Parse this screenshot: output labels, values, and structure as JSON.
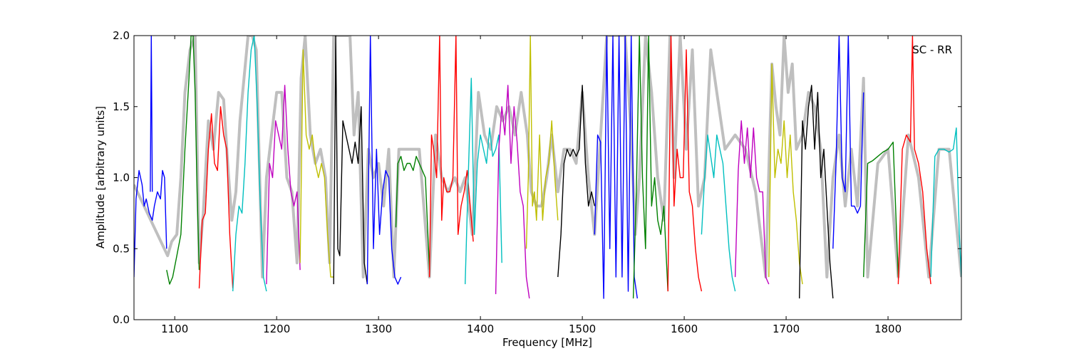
{
  "chart_data": {
    "type": "line",
    "title": "",
    "annotation": "SC - RR",
    "xlabel": "Frequency [MHz]",
    "ylabel": "Amplitude [arbitrary units]",
    "xlim": [
      1060,
      1872
    ],
    "ylim": [
      0.0,
      2.0
    ],
    "x_ticks": [
      1100,
      1200,
      1300,
      1400,
      1500,
      1600,
      1700,
      1800
    ],
    "x_tick_labels": [
      "1100",
      "1200",
      "1300",
      "1400",
      "1500",
      "1600",
      "1700",
      "1800"
    ],
    "y_ticks": [
      0.0,
      0.5,
      1.0,
      1.5,
      2.0
    ],
    "y_tick_labels": [
      "0.0",
      "0.5",
      "1.0",
      "1.5",
      "2.0"
    ],
    "grid": false,
    "background_series": {
      "color": "#bfbfbf",
      "x": [
        1060,
        1093,
        1097,
        1102,
        1106,
        1110,
        1115,
        1120,
        1124,
        1128,
        1133,
        1138,
        1143,
        1148,
        1152,
        1156,
        1160,
        1164,
        1168,
        1172,
        1176,
        1180,
        1186,
        1190,
        1195,
        1200,
        1205,
        1210,
        1215,
        1220,
        1224,
        1228,
        1233,
        1238,
        1243,
        1248,
        1252,
        1256,
        1260,
        1264,
        1268,
        1272,
        1276,
        1280,
        1285,
        1290,
        1295,
        1300,
        1305,
        1310,
        1315,
        1320,
        1330,
        1340,
        1350,
        1356,
        1362,
        1368,
        1375,
        1380,
        1385,
        1392,
        1398,
        1404,
        1410,
        1416,
        1422,
        1428,
        1434,
        1440,
        1446,
        1450,
        1455,
        1460,
        1465,
        1470,
        1476,
        1482,
        1488,
        1494,
        1500,
        1506,
        1512,
        1518,
        1524,
        1530,
        1536,
        1542,
        1548,
        1552,
        1556,
        1562,
        1568,
        1574,
        1580,
        1586,
        1590,
        1596,
        1602,
        1608,
        1614,
        1620,
        1626,
        1632,
        1640,
        1650,
        1660,
        1670,
        1680,
        1686,
        1690,
        1694,
        1698,
        1702,
        1706,
        1710,
        1716,
        1722,
        1728,
        1734,
        1740,
        1746,
        1752,
        1758,
        1764,
        1770,
        1776,
        1780,
        1790,
        1800,
        1810,
        1820,
        1830,
        1840,
        1850,
        1860,
        1872
      ],
      "y": [
        0.95,
        0.45,
        0.55,
        0.6,
        1.0,
        1.6,
        1.9,
        2.0,
        0.4,
        0.75,
        1.4,
        1.2,
        1.6,
        1.55,
        1.1,
        0.7,
        0.9,
        1.4,
        1.7,
        2.0,
        2.0,
        1.9,
        0.3,
        1.0,
        1.3,
        1.6,
        1.6,
        1.0,
        0.9,
        0.4,
        1.7,
        2.0,
        1.3,
        1.1,
        1.2,
        1.0,
        0.4,
        2.0,
        2.0,
        2.0,
        2.0,
        2.0,
        1.3,
        1.6,
        0.3,
        1.2,
        1.0,
        1.1,
        0.8,
        1.2,
        0.3,
        1.2,
        1.2,
        1.2,
        0.3,
        1.3,
        1.0,
        0.9,
        1.0,
        0.9,
        1.0,
        0.6,
        1.6,
        1.3,
        1.2,
        1.5,
        1.4,
        1.5,
        1.3,
        1.6,
        1.3,
        0.9,
        0.8,
        0.8,
        1.0,
        1.3,
        0.9,
        1.2,
        1.2,
        1.1,
        1.6,
        1.0,
        0.6,
        1.3,
        2.0,
        2.0,
        2.0,
        2.0,
        1.3,
        0.6,
        1.0,
        2.0,
        1.6,
        1.0,
        0.7,
        2.0,
        1.0,
        2.0,
        1.2,
        1.9,
        0.8,
        1.0,
        1.9,
        1.6,
        1.2,
        1.3,
        1.2,
        0.9,
        0.3,
        1.8,
        1.5,
        1.3,
        2.0,
        1.6,
        1.8,
        1.2,
        1.3,
        1.6,
        1.5,
        1.2,
        0.3,
        1.0,
        1.3,
        0.8,
        1.2,
        0.8,
        1.7,
        0.3,
        1.1,
        1.2,
        0.3,
        1.3,
        1.0,
        0.3,
        1.2,
        1.2,
        0.3
      ]
    },
    "series": [
      {
        "color": "#0000ff",
        "x": [
          1060,
          1062,
          1065,
          1068,
          1070,
          1072,
          1075,
          1078,
          1080,
          1083,
          1086,
          1088,
          1090,
          1092
        ],
        "y": [
          0.3,
          0.85,
          1.05,
          0.95,
          0.8,
          0.85,
          0.75,
          0.7,
          0.8,
          0.9,
          0.85,
          1.05,
          1.0,
          0.5
        ]
      },
      {
        "color": "#0000ff",
        "x": [
          1076,
          1077,
          1078
        ],
        "y": [
          0.9,
          2.0,
          0.9
        ]
      },
      {
        "color": "#008000",
        "x": [
          1092,
          1095,
          1098,
          1102,
          1106,
          1110,
          1114,
          1116,
          1118,
          1120,
          1122,
          1124
        ],
        "y": [
          0.35,
          0.25,
          0.3,
          0.45,
          0.6,
          1.2,
          1.7,
          2.0,
          2.0,
          1.6,
          0.9,
          0.35
        ]
      },
      {
        "color": "#ff0000",
        "x": [
          1124,
          1127,
          1130,
          1133,
          1136,
          1139,
          1142,
          1145,
          1148,
          1151,
          1154,
          1157
        ],
        "y": [
          0.22,
          0.7,
          0.75,
          1.2,
          1.45,
          1.1,
          1.05,
          1.5,
          1.3,
          1.2,
          0.6,
          0.22
        ]
      },
      {
        "color": "#00bfbf",
        "x": [
          1157,
          1160,
          1163,
          1166,
          1169,
          1172,
          1175,
          1178,
          1181,
          1184,
          1187,
          1190
        ],
        "y": [
          0.2,
          0.6,
          0.8,
          0.75,
          1.1,
          1.6,
          1.9,
          2.0,
          1.5,
          0.8,
          0.3,
          0.2
        ]
      },
      {
        "color": "#bf00bf",
        "x": [
          1190,
          1193,
          1196,
          1199,
          1202,
          1205,
          1208,
          1211,
          1214,
          1217,
          1220,
          1223
        ],
        "y": [
          0.25,
          1.1,
          1.0,
          1.4,
          1.3,
          1.2,
          1.65,
          1.2,
          0.9,
          0.8,
          0.9,
          0.35
        ]
      },
      {
        "color": "#bfbf00",
        "x": [
          1223,
          1226,
          1229,
          1232,
          1235,
          1238,
          1241,
          1244,
          1247,
          1250,
          1253,
          1256
        ],
        "y": [
          0.4,
          1.9,
          1.3,
          1.2,
          1.3,
          1.1,
          1.0,
          1.1,
          1.0,
          0.6,
          0.3,
          0.3
        ]
      },
      {
        "color": "#000000",
        "x": [
          1256,
          1258,
          1260,
          1262,
          1265,
          1268,
          1271,
          1274,
          1277,
          1280,
          1283,
          1286,
          1289
        ],
        "y": [
          0.25,
          2.0,
          0.5,
          0.45,
          1.4,
          1.3,
          1.2,
          1.1,
          1.25,
          1.1,
          1.5,
          0.4,
          0.25
        ]
      },
      {
        "color": "#0000ff",
        "x": [
          1289,
          1292,
          1295,
          1298,
          1301,
          1304,
          1307,
          1310,
          1313,
          1316,
          1319,
          1322
        ],
        "y": [
          0.25,
          2.0,
          0.5,
          1.2,
          0.6,
          0.9,
          1.05,
          1.0,
          0.5,
          0.3,
          0.25,
          0.3
        ]
      },
      {
        "color": "#008000",
        "x": [
          1317,
          1319,
          1322,
          1325,
          1328,
          1331,
          1334,
          1337,
          1340,
          1343,
          1346,
          1350
        ],
        "y": [
          0.65,
          1.1,
          1.15,
          1.05,
          1.1,
          1.1,
          1.05,
          1.15,
          1.1,
          1.05,
          1.0,
          0.35
        ]
      },
      {
        "color": "#ff0000",
        "x": [
          1350,
          1352,
          1354,
          1357,
          1360,
          1362,
          1364,
          1367,
          1370,
          1373,
          1376,
          1378,
          1381,
          1384,
          1387,
          1390,
          1393
        ],
        "y": [
          0.3,
          1.3,
          1.2,
          1.0,
          2.0,
          0.7,
          1.0,
          0.9,
          0.9,
          1.0,
          2.0,
          0.6,
          0.8,
          0.9,
          1.05,
          0.8,
          0.55
        ]
      },
      {
        "color": "#00bfbf",
        "x": [
          1385,
          1388,
          1391,
          1394,
          1397,
          1400,
          1403,
          1406,
          1409,
          1412,
          1415,
          1418,
          1421
        ],
        "y": [
          0.25,
          1.0,
          1.7,
          0.6,
          1.1,
          1.3,
          1.2,
          1.1,
          1.35,
          1.15,
          1.2,
          1.3,
          0.4
        ]
      },
      {
        "color": "#bf00bf",
        "x": [
          1415,
          1418,
          1421,
          1424,
          1427,
          1430,
          1433,
          1436,
          1439,
          1442,
          1445,
          1448
        ],
        "y": [
          0.18,
          1.2,
          1.5,
          1.3,
          1.65,
          1.1,
          1.5,
          1.25,
          0.9,
          0.8,
          0.3,
          0.15
        ]
      },
      {
        "color": "#bfbf00",
        "x": [
          1445,
          1447,
          1449,
          1451,
          1453,
          1455,
          1458,
          1461,
          1464,
          1467,
          1470,
          1473,
          1476
        ],
        "y": [
          0.5,
          1.0,
          2.0,
          0.8,
          0.9,
          0.7,
          1.3,
          0.7,
          1.0,
          1.1,
          1.4,
          1.0,
          0.7
        ]
      },
      {
        "color": "#000000",
        "x": [
          1476,
          1479,
          1482,
          1485,
          1488,
          1491,
          1494,
          1497,
          1500,
          1503,
          1506,
          1509,
          1512
        ],
        "y": [
          0.3,
          0.6,
          1.1,
          1.2,
          1.15,
          1.2,
          1.15,
          1.2,
          1.65,
          1.1,
          0.8,
          0.9,
          0.8
        ]
      },
      {
        "color": "#0000ff",
        "x": [
          1512,
          1515,
          1518,
          1521,
          1524,
          1527,
          1530,
          1533,
          1536,
          1539,
          1542,
          1545,
          1548,
          1551,
          1554
        ],
        "y": [
          0.6,
          1.3,
          1.25,
          0.15,
          2.0,
          0.5,
          2.0,
          0.3,
          2.0,
          0.3,
          2.0,
          0.2,
          2.0,
          0.3,
          0.15
        ]
      },
      {
        "color": "#008000",
        "x": [
          1550,
          1553,
          1556,
          1559,
          1562,
          1565,
          1568,
          1571,
          1574,
          1577,
          1580,
          1584
        ],
        "y": [
          0.15,
          0.9,
          2.0,
          1.0,
          0.5,
          2.0,
          0.8,
          1.0,
          0.7,
          0.6,
          0.8,
          0.2
        ]
      },
      {
        "color": "#ff0000",
        "x": [
          1584,
          1587,
          1590,
          1593,
          1596,
          1599,
          1602,
          1605,
          1608,
          1611,
          1614,
          1617
        ],
        "y": [
          0.2,
          2.0,
          0.8,
          1.2,
          1.0,
          1.0,
          1.9,
          0.9,
          0.8,
          0.5,
          0.3,
          0.2
        ]
      },
      {
        "color": "#00bfbf",
        "x": [
          1617,
          1620,
          1623,
          1626,
          1629,
          1632,
          1635,
          1638,
          1641,
          1644,
          1647,
          1650
        ],
        "y": [
          0.6,
          1.0,
          1.3,
          1.15,
          1.0,
          1.3,
          1.2,
          1.1,
          0.8,
          0.5,
          0.3,
          0.2
        ]
      },
      {
        "color": "#bf00bf",
        "x": [
          1650,
          1653,
          1656,
          1659,
          1662,
          1665,
          1668,
          1671,
          1674,
          1677,
          1680,
          1683
        ],
        "y": [
          0.3,
          1.05,
          1.4,
          1.1,
          1.35,
          1.0,
          1.35,
          1.0,
          0.9,
          0.9,
          0.3,
          0.25
        ]
      },
      {
        "color": "#bfbf00",
        "x": [
          1683,
          1686,
          1689,
          1692,
          1695,
          1698,
          1701,
          1704,
          1707,
          1710,
          1713,
          1716
        ],
        "y": [
          0.3,
          1.8,
          1.0,
          1.2,
          1.1,
          1.4,
          1.0,
          1.3,
          0.9,
          0.7,
          0.4,
          0.25
        ]
      },
      {
        "color": "#000000",
        "x": [
          1713,
          1716,
          1719,
          1722,
          1725,
          1728,
          1731,
          1734,
          1737,
          1740,
          1743,
          1746
        ],
        "y": [
          0.15,
          1.4,
          1.2,
          1.5,
          1.65,
          1.2,
          1.6,
          1.0,
          1.2,
          0.8,
          0.4,
          0.15
        ]
      },
      {
        "color": "#0000ff",
        "x": [
          1746,
          1749,
          1752,
          1755,
          1758,
          1761,
          1764,
          1767,
          1770,
          1773,
          1776
        ],
        "y": [
          0.5,
          1.1,
          2.0,
          1.0,
          0.9,
          2.0,
          0.8,
          0.8,
          0.75,
          0.8,
          1.6
        ]
      },
      {
        "color": "#008000",
        "x": [
          1776,
          1780,
          1785,
          1790,
          1795,
          1800,
          1805,
          1810
        ],
        "y": [
          0.3,
          1.1,
          1.12,
          1.15,
          1.18,
          1.2,
          1.25,
          0.3
        ]
      },
      {
        "color": "#ff0000",
        "x": [
          1810,
          1814,
          1818,
          1822,
          1824,
          1826,
          1830,
          1834,
          1838,
          1842
        ],
        "y": [
          0.25,
          1.2,
          1.3,
          1.25,
          2.0,
          1.2,
          1.1,
          0.9,
          0.5,
          0.25
        ]
      },
      {
        "color": "#00bfbf",
        "x": [
          1842,
          1846,
          1850,
          1855,
          1860,
          1864,
          1867,
          1870,
          1872
        ],
        "y": [
          0.3,
          1.15,
          1.2,
          1.2,
          1.18,
          1.2,
          1.35,
          0.6,
          0.3
        ]
      }
    ]
  }
}
